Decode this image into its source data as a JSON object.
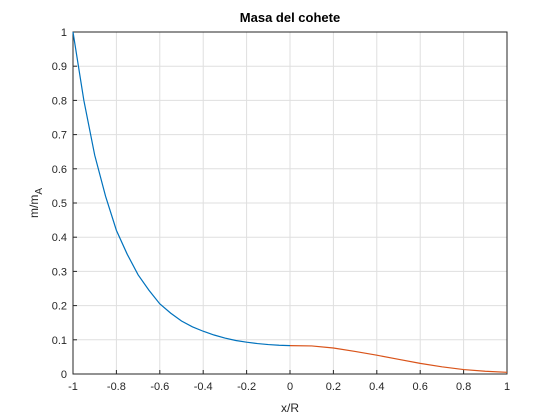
{
  "chart_data": {
    "type": "line",
    "title": "Masa del cohete",
    "xlabel": "x/R",
    "ylabel": "m/m",
    "ylabel_sub": "A",
    "series": [
      {
        "color": "#0072bd",
        "x": [
          -1,
          -0.95,
          -0.9,
          -0.85,
          -0.8,
          -0.75,
          -0.7,
          -0.65,
          -0.6,
          -0.55,
          -0.5,
          -0.45,
          -0.4,
          -0.35,
          -0.3,
          -0.25,
          -0.2,
          -0.15,
          -0.1,
          -0.05,
          0
        ],
        "values": [
          1.0,
          0.8,
          0.64,
          0.52,
          0.42,
          0.35,
          0.29,
          0.245,
          0.205,
          0.178,
          0.155,
          0.138,
          0.125,
          0.114,
          0.105,
          0.098,
          0.093,
          0.089,
          0.086,
          0.084,
          0.083
        ]
      },
      {
        "color": "#d95319",
        "x": [
          0,
          0.1,
          0.2,
          0.3,
          0.4,
          0.5,
          0.6,
          0.7,
          0.8,
          0.9,
          1
        ],
        "values": [
          0.083,
          0.082,
          0.076,
          0.066,
          0.055,
          0.043,
          0.031,
          0.021,
          0.013,
          0.008,
          0.005
        ]
      }
    ],
    "xlim": [
      -1,
      1
    ],
    "xticks": [
      -1,
      -0.8,
      -0.6,
      -0.4,
      -0.2,
      0,
      0.2,
      0.4,
      0.6,
      0.8,
      1
    ],
    "ylim": [
      0,
      1
    ],
    "yticks": [
      0,
      0.1,
      0.2,
      0.3,
      0.4,
      0.5,
      0.6,
      0.7,
      0.8,
      0.9,
      1
    ],
    "grid": true
  }
}
